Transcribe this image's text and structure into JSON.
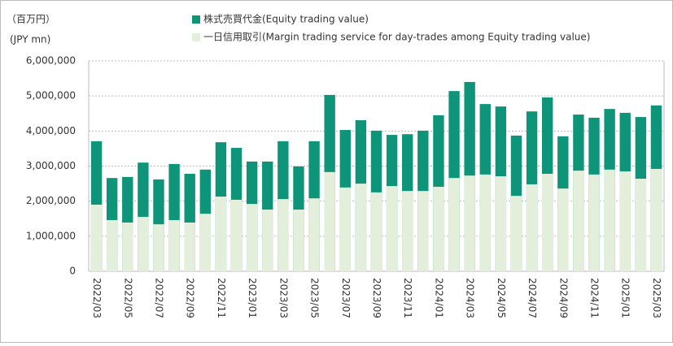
{
  "chart_data": {
    "type": "bar",
    "unit_label": "（百万円）",
    "unit_label_en": "(JPY mn)",
    "categories": [
      "2022/03",
      null,
      "2022/05",
      null,
      "2022/07",
      null,
      "2022/09",
      null,
      "2022/11",
      null,
      "2023/01",
      null,
      "2023/03",
      null,
      "2023/05",
      null,
      "2023/07",
      null,
      "2023/09",
      null,
      "2023/11",
      null,
      "2024/01",
      null,
      "2024/03",
      null,
      "2024/05",
      null,
      "2024/07",
      null,
      "2024/09",
      null,
      "2024/11",
      null,
      "2025/01",
      null,
      "2025/03"
    ],
    "series": [
      {
        "name": "株式売買代金(Equity trading value)",
        "color": "#0e9579",
        "values": [
          3710000,
          2660000,
          2690000,
          3100000,
          2620000,
          3060000,
          2780000,
          2900000,
          3680000,
          3520000,
          3130000,
          3130000,
          3710000,
          2990000,
          3710000,
          5030000,
          4030000,
          4310000,
          4010000,
          3890000,
          3910000,
          4010000,
          4450000,
          5140000,
          5400000,
          4770000,
          4700000,
          3870000,
          4560000,
          4960000,
          3850000,
          4470000,
          4380000,
          4630000,
          4520000,
          4400000,
          4730000
        ]
      },
      {
        "name": "一日信用取引(Margin trading service for day-trades among Equity trading value)",
        "color": "#e4efdb",
        "values": [
          1900000,
          1460000,
          1390000,
          1550000,
          1340000,
          1460000,
          1390000,
          1640000,
          2130000,
          2040000,
          1920000,
          1760000,
          2060000,
          1760000,
          2080000,
          2830000,
          2390000,
          2500000,
          2250000,
          2430000,
          2290000,
          2290000,
          2410000,
          2660000,
          2730000,
          2760000,
          2710000,
          2150000,
          2480000,
          2780000,
          2360000,
          2870000,
          2760000,
          2900000,
          2850000,
          2640000,
          2920000
        ]
      }
    ],
    "ylim": [
      0,
      6000000
    ],
    "yticks": [
      0,
      {
        "value": 1000000,
        "label": "1,000,000"
      },
      {
        "value": 2000000,
        "label": "2,000,000"
      },
      {
        "value": 3000000,
        "label": "3,000,000"
      },
      {
        "value": 4000000,
        "label": "4,000,000"
      },
      {
        "value": 5000000,
        "label": "5,000,000"
      },
      {
        "value": 6000000,
        "label": "6,000,000"
      }
    ],
    "grid": true
  }
}
